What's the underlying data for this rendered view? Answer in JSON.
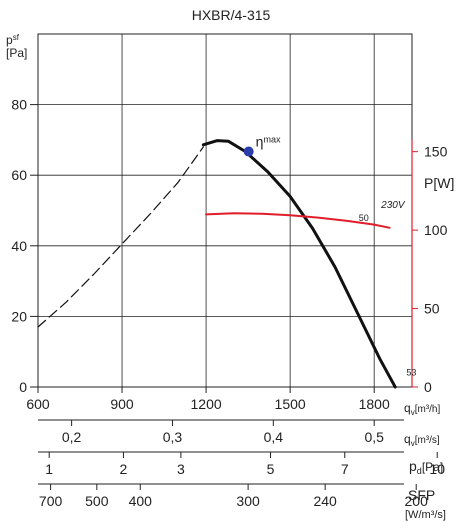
{
  "chart_data": {
    "type": "line",
    "title": "HXBR/4-315",
    "y_left": {
      "label_main": "p",
      "label_sub": "sf",
      "unit": "[Pa]",
      "ticks": [
        0,
        20,
        40,
        60,
        80
      ],
      "range": [
        0,
        100
      ]
    },
    "y_right": {
      "label": "P[W]",
      "ticks": [
        0,
        50,
        100,
        150
      ],
      "range": [
        0,
        225
      ],
      "color": "#e11d2b"
    },
    "x": {
      "label": "qv[m³/h]",
      "label_main": "q",
      "label_sub": "v",
      "label_unit": "[m³/h]",
      "ticks": [
        600,
        900,
        1200,
        1500,
        1800
      ],
      "range": [
        600,
        1935
      ]
    },
    "secondary_scales": [
      {
        "id": "qv_m3s",
        "label_main": "q",
        "label_sub": "v",
        "label_unit": "[m³/s]",
        "tick_labels": [
          "0,2",
          "0,3",
          "0,4",
          "0,5"
        ],
        "tick_values_m3h": [
          720,
          1080,
          1440,
          1800
        ]
      },
      {
        "id": "pd",
        "label_main": "p",
        "label_sub": "d",
        "label_unit": "[Pa]",
        "tick_labels": [
          "1",
          "2",
          "3",
          "5",
          "7",
          "10"
        ],
        "tick_values_m3h": [
          640,
          905,
          1110,
          1430,
          1695,
          2025
        ]
      },
      {
        "id": "sfp",
        "label": "SFP",
        "label_unit": "[W/m³/s]",
        "tick_labels": [
          "700",
          "500",
          "400",
          "300",
          "240",
          "200"
        ],
        "tick_values_m3h": [
          645,
          810,
          965,
          1350,
          1625,
          1950
        ]
      }
    ],
    "series": [
      {
        "id": "pressure_dashed",
        "style": "dashed",
        "axis": "left",
        "color": "#111111",
        "points": [
          [
            600,
            17
          ],
          [
            700,
            24
          ],
          [
            800,
            32
          ],
          [
            900,
            40.5
          ],
          [
            1000,
            49
          ],
          [
            1100,
            58
          ],
          [
            1190,
            68
          ]
        ]
      },
      {
        "id": "pressure",
        "style": "solid",
        "axis": "left",
        "color": "#111111",
        "points": [
          [
            1190,
            68.6
          ],
          [
            1240,
            69.8
          ],
          [
            1280,
            69.6
          ],
          [
            1340,
            66.7
          ],
          [
            1420,
            61
          ],
          [
            1500,
            54
          ],
          [
            1580,
            45
          ],
          [
            1660,
            34
          ],
          [
            1740,
            21
          ],
          [
            1820,
            8
          ],
          [
            1875,
            0
          ]
        ]
      },
      {
        "id": "power_230v",
        "style": "solid",
        "axis": "right",
        "color": "#e11d2b",
        "points": [
          [
            1200,
            110
          ],
          [
            1300,
            110.8
          ],
          [
            1400,
            110.4
          ],
          [
            1500,
            109.5
          ],
          [
            1600,
            108
          ],
          [
            1700,
            106
          ],
          [
            1800,
            103.5
          ],
          [
            1855,
            101.5
          ]
        ]
      }
    ],
    "annotations": {
      "eta_max": {
        "symbol": "η",
        "sub": "max",
        "x": 1352,
        "y": 66.7,
        "color": "#2b3eaa"
      },
      "label_50": {
        "text": "50",
        "x": 1745,
        "y": 47
      },
      "label_53": {
        "text": "53",
        "x": 1915,
        "y": 3.3
      },
      "label_230v": {
        "text": "230V",
        "x": 1825,
        "y": 114,
        "axis": "right",
        "color": "#e11d2b"
      }
    },
    "grid": true
  }
}
